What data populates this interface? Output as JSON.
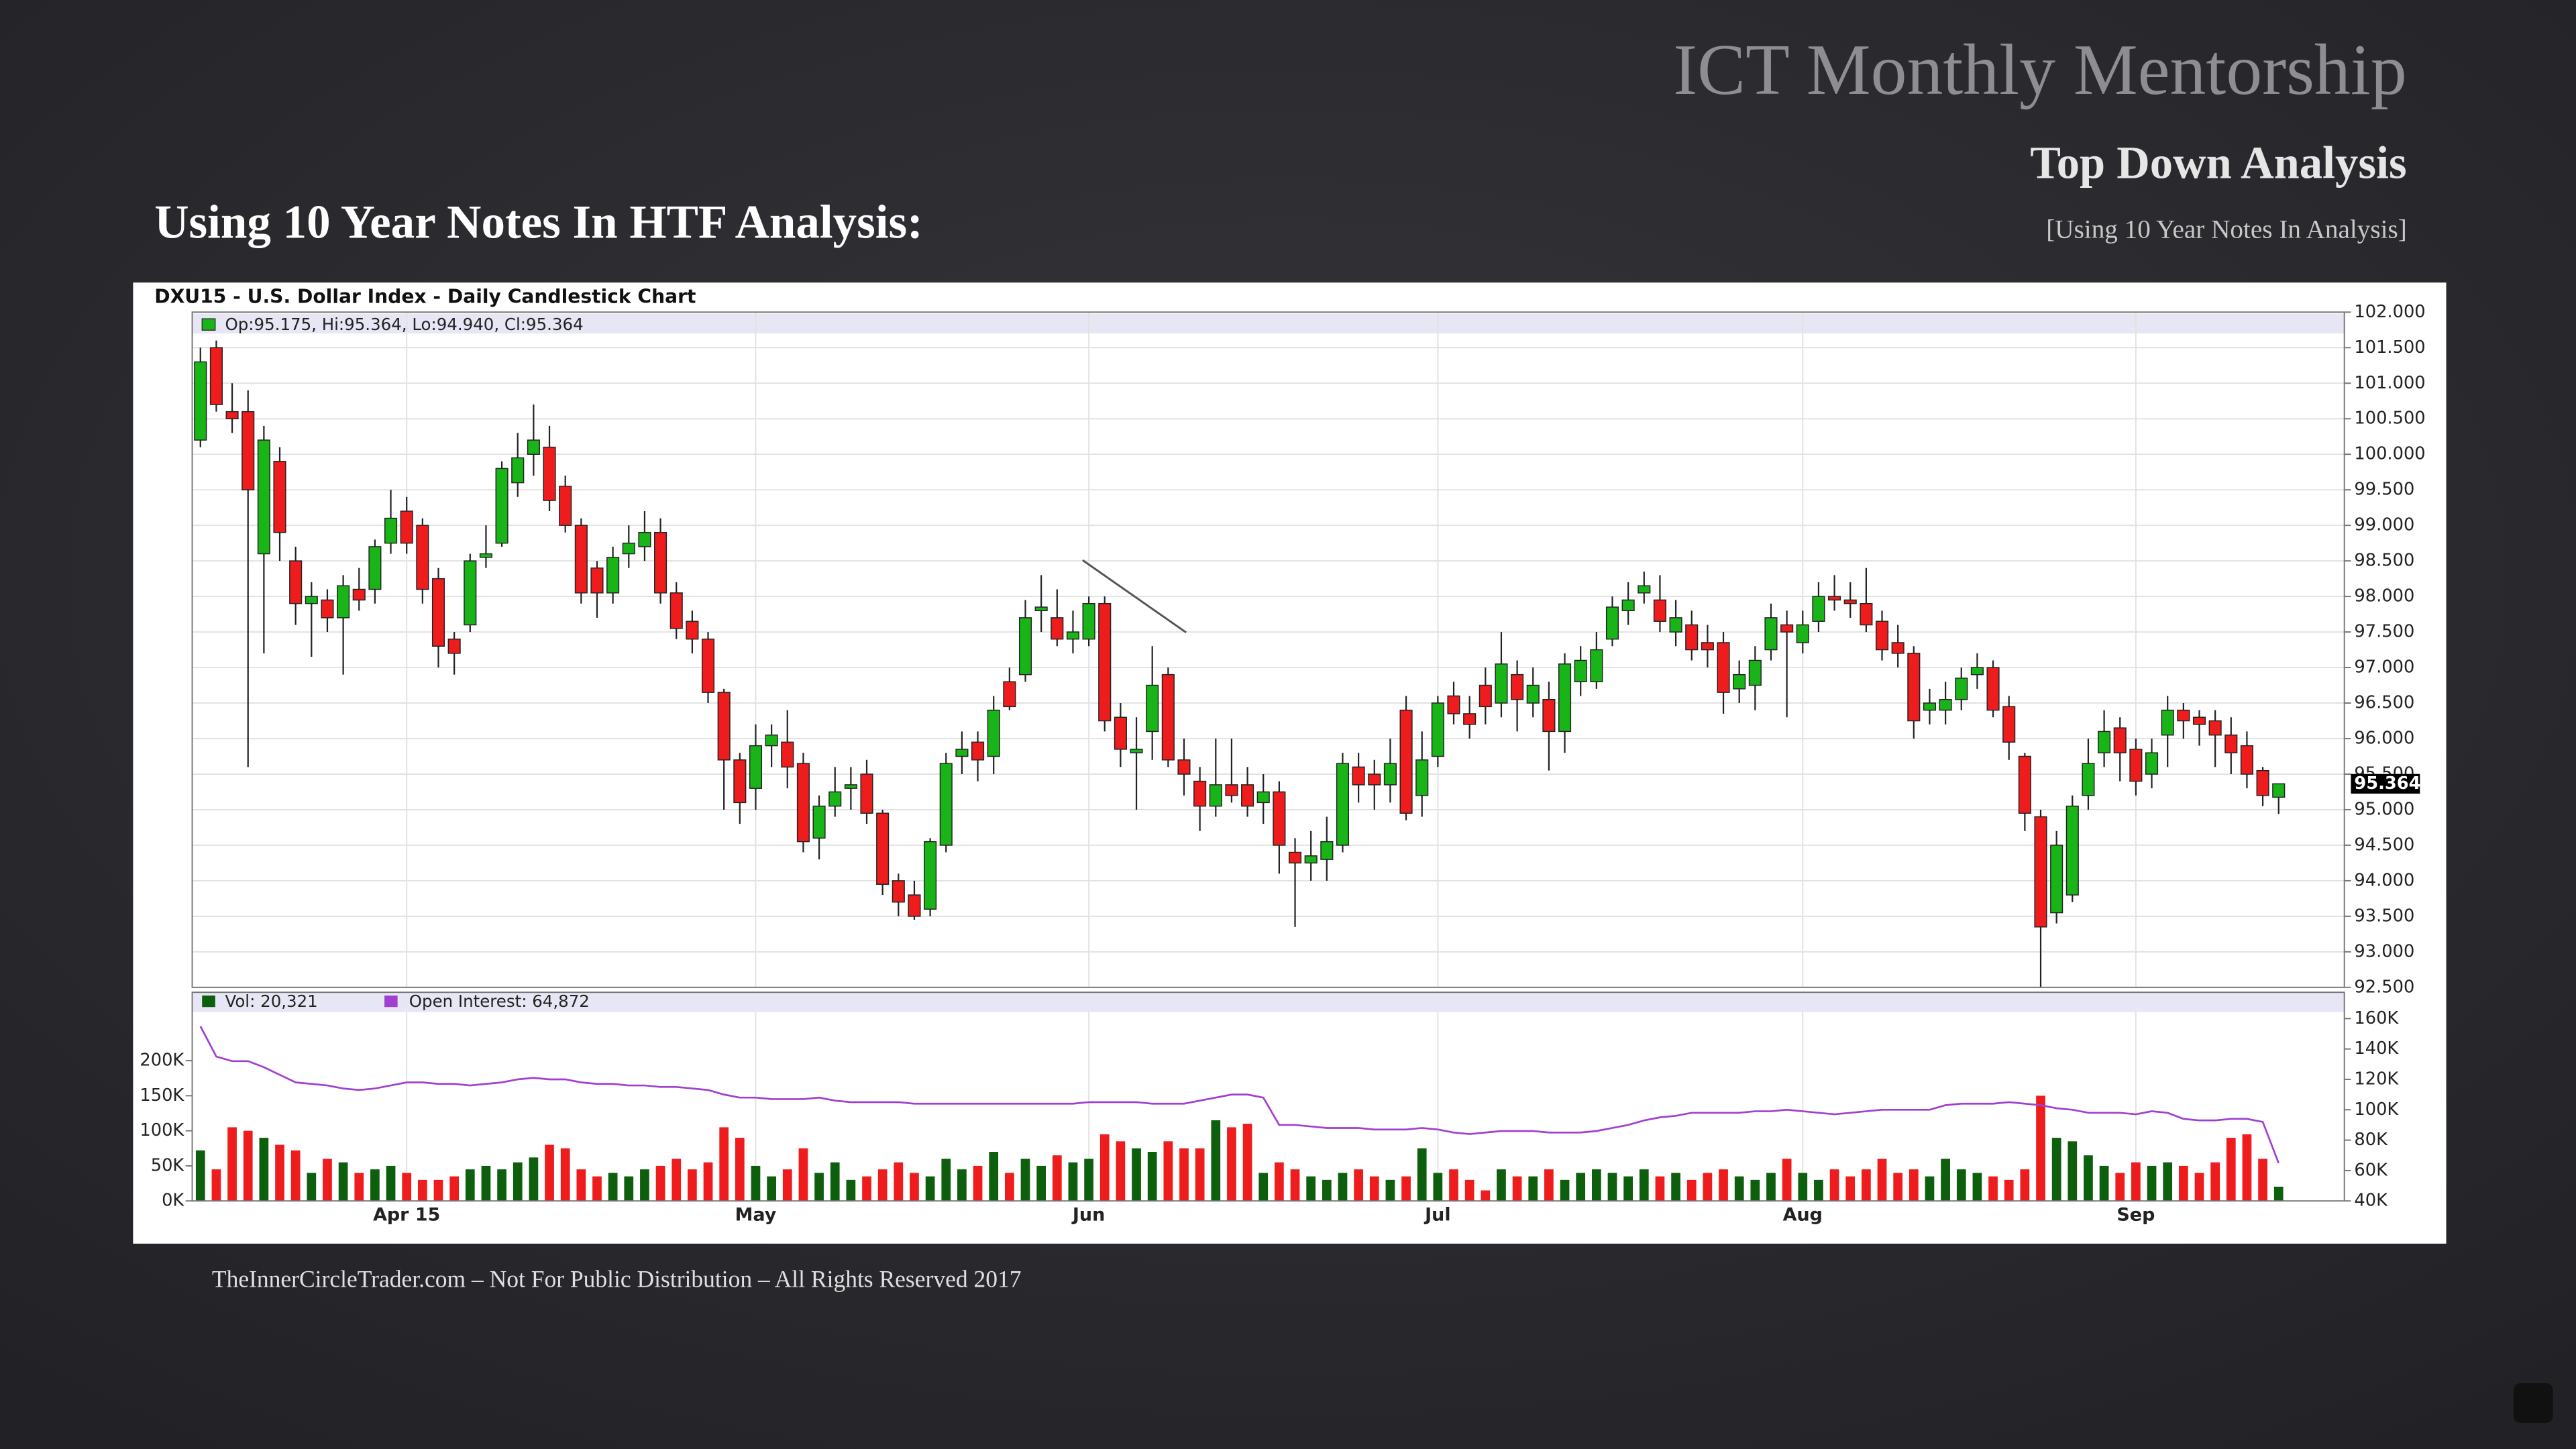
{
  "slide": {
    "title": "ICT Monthly Mentorship",
    "subtitle": "Top Down Analysis",
    "bracket_note": "[Using 10 Year Notes In Analysis]",
    "heading": "Using 10 Year Notes In HTF Analysis:",
    "footer": "TheInnerCircleTrader.com – Not For Public Distribution – All Rights Reserved 2017"
  },
  "chart_data": [
    {
      "type": "candlestick",
      "title": "DXU15 - U.S. Dollar Index - Daily Candlestick Chart",
      "legend": "Op:95.175, Hi:95.364, Lo:94.940, Cl:95.364",
      "up_color": "#18b418",
      "down_color": "#ee1c1c",
      "grid": true,
      "open": [
        100.2,
        101.5,
        100.6,
        100.6,
        98.6,
        99.9,
        98.5,
        97.9,
        97.95,
        97.7,
        98.1,
        98.1,
        98.75,
        99.2,
        99.0,
        98.25,
        97.4,
        97.6,
        98.55,
        98.75,
        99.6,
        100.0,
        100.1,
        99.55,
        99.0,
        98.4,
        98.05,
        98.6,
        98.7,
        98.9,
        98.05,
        97.65,
        97.4,
        96.65,
        95.7,
        95.3,
        95.9,
        95.95,
        95.65,
        94.6,
        95.05,
        95.3,
        95.5,
        94.95,
        94.0,
        93.8,
        93.6,
        94.5,
        95.75,
        95.95,
        95.75,
        96.8,
        96.9,
        97.8,
        97.7,
        97.4,
        97.4,
        97.9,
        96.3,
        95.8,
        96.1,
        96.9,
        95.7,
        95.4,
        95.05,
        95.35,
        95.35,
        95.1,
        95.25,
        94.4,
        94.25,
        94.3,
        94.5,
        95.6,
        95.5,
        95.35,
        96.4,
        95.2,
        95.75,
        96.6,
        96.35,
        96.75,
        96.5,
        96.9,
        96.5,
        96.55,
        96.1,
        96.8,
        96.8,
        97.4,
        97.8,
        98.05,
        97.95,
        97.5,
        97.6,
        97.35,
        97.35,
        96.7,
        96.75,
        97.25,
        97.6,
        97.35,
        97.65,
        98.0,
        97.95,
        97.9,
        97.65,
        97.35,
        97.2,
        96.4,
        96.4,
        96.55,
        96.9,
        97.0,
        96.45,
        95.75,
        94.9,
        93.55,
        93.8,
        95.2,
        95.8,
        96.15,
        95.85,
        95.5,
        96.05,
        96.4,
        96.3,
        96.25,
        96.05,
        95.9,
        95.55,
        95.175
      ],
      "high": [
        101.5,
        101.6,
        101.0,
        100.9,
        100.4,
        100.1,
        98.7,
        98.2,
        98.1,
        98.3,
        98.4,
        98.8,
        99.5,
        99.4,
        99.1,
        98.4,
        97.5,
        98.6,
        99.0,
        99.9,
        100.3,
        100.7,
        100.4,
        99.7,
        99.1,
        98.5,
        98.7,
        99.0,
        99.2,
        99.1,
        98.2,
        97.8,
        97.5,
        96.7,
        95.8,
        96.2,
        96.2,
        96.4,
        95.8,
        95.2,
        95.6,
        95.6,
        95.7,
        95.0,
        94.1,
        94.0,
        94.6,
        95.8,
        96.1,
        96.1,
        96.6,
        97.0,
        97.95,
        98.3,
        98.1,
        97.8,
        98.0,
        98.0,
        96.5,
        96.3,
        97.3,
        97.0,
        96.0,
        95.6,
        96.0,
        96.0,
        95.6,
        95.5,
        95.4,
        94.6,
        94.7,
        94.9,
        95.8,
        95.8,
        95.7,
        96.0,
        96.6,
        96.1,
        96.6,
        96.8,
        96.6,
        97.0,
        97.5,
        97.1,
        97.0,
        96.8,
        97.2,
        97.3,
        97.5,
        98.0,
        98.2,
        98.35,
        98.3,
        97.95,
        97.8,
        97.6,
        97.5,
        97.1,
        97.3,
        97.9,
        97.8,
        97.8,
        98.2,
        98.3,
        98.2,
        98.4,
        97.8,
        97.6,
        97.3,
        96.7,
        96.8,
        97.0,
        97.2,
        97.1,
        96.6,
        95.8,
        95.0,
        94.7,
        95.2,
        96.0,
        96.4,
        96.3,
        96.0,
        96.0,
        96.6,
        96.5,
        96.4,
        96.4,
        96.3,
        96.1,
        95.6,
        95.364
      ],
      "low": [
        100.1,
        100.6,
        100.3,
        95.6,
        97.2,
        98.5,
        97.6,
        97.15,
        97.5,
        96.9,
        97.8,
        97.9,
        98.6,
        98.6,
        97.9,
        97.0,
        96.9,
        97.5,
        98.4,
        98.7,
        99.4,
        99.7,
        99.2,
        98.9,
        97.9,
        97.7,
        97.9,
        98.4,
        98.5,
        97.9,
        97.4,
        97.2,
        96.5,
        95.0,
        94.8,
        95.0,
        95.6,
        95.3,
        94.4,
        94.3,
        94.9,
        95.0,
        94.8,
        93.8,
        93.5,
        93.45,
        93.5,
        94.4,
        95.5,
        95.4,
        95.5,
        96.4,
        96.8,
        97.5,
        97.3,
        97.2,
        97.3,
        96.1,
        95.6,
        95.0,
        95.7,
        95.6,
        95.2,
        94.7,
        94.9,
        95.1,
        94.9,
        94.8,
        94.1,
        93.35,
        94.0,
        94.0,
        94.4,
        95.1,
        95.0,
        95.1,
        94.85,
        94.9,
        95.6,
        96.2,
        96.0,
        96.2,
        96.3,
        96.1,
        96.3,
        95.55,
        95.8,
        96.6,
        96.7,
        97.3,
        97.6,
        97.9,
        97.5,
        97.3,
        97.1,
        97.0,
        96.35,
        96.5,
        96.4,
        97.1,
        96.3,
        97.2,
        97.5,
        97.8,
        97.7,
        97.5,
        97.1,
        97.0,
        96.0,
        96.2,
        96.2,
        96.4,
        96.7,
        96.3,
        95.7,
        94.7,
        92.5,
        93.4,
        93.7,
        95.0,
        95.6,
        95.4,
        95.2,
        95.3,
        95.6,
        96.0,
        95.9,
        95.6,
        95.5,
        95.3,
        95.05,
        94.94
      ],
      "close": [
        101.3,
        100.7,
        100.5,
        99.5,
        100.2,
        98.9,
        97.9,
        98.0,
        97.7,
        98.15,
        97.95,
        98.7,
        99.1,
        98.75,
        98.1,
        97.3,
        97.2,
        98.5,
        98.6,
        99.8,
        99.95,
        100.2,
        99.35,
        99.0,
        98.05,
        98.05,
        98.55,
        98.75,
        98.9,
        98.05,
        97.55,
        97.4,
        96.65,
        95.7,
        95.1,
        95.9,
        96.05,
        95.6,
        94.55,
        95.05,
        95.25,
        95.35,
        94.95,
        93.95,
        93.7,
        93.5,
        94.55,
        95.65,
        95.85,
        95.7,
        96.4,
        96.45,
        97.7,
        97.85,
        97.4,
        97.5,
        97.9,
        96.25,
        95.85,
        95.85,
        96.75,
        95.7,
        95.5,
        95.05,
        95.35,
        95.2,
        95.05,
        95.25,
        94.5,
        94.25,
        94.35,
        94.55,
        95.65,
        95.35,
        95.35,
        95.65,
        94.95,
        95.7,
        96.5,
        96.35,
        96.2,
        96.45,
        97.05,
        96.55,
        96.75,
        96.1,
        97.05,
        97.1,
        97.25,
        97.85,
        97.95,
        98.15,
        97.65,
        97.7,
        97.25,
        97.25,
        96.65,
        96.9,
        97.1,
        97.7,
        97.5,
        97.6,
        98.0,
        97.95,
        97.9,
        97.6,
        97.25,
        97.2,
        96.25,
        96.5,
        96.55,
        96.85,
        97.0,
        96.4,
        95.95,
        94.95,
        93.35,
        94.5,
        95.05,
        95.65,
        96.1,
        95.8,
        95.4,
        95.8,
        96.4,
        96.25,
        96.2,
        96.05,
        95.8,
        95.5,
        95.2,
        95.364
      ],
      "ylim": [
        92.5,
        102.0
      ],
      "yticks": [
        {
          "value": 92.5,
          "label": "92.500"
        },
        {
          "value": 93,
          "label": "93.000"
        },
        {
          "value": 93.5,
          "label": "93.500"
        },
        {
          "value": 94,
          "label": "94.000"
        },
        {
          "value": 94.5,
          "label": "94.500"
        },
        {
          "value": 95,
          "label": "95.000"
        },
        {
          "value": 95.5,
          "label": "95.500"
        },
        {
          "value": 96,
          "label": "96.000"
        },
        {
          "value": 96.5,
          "label": "96.500"
        },
        {
          "value": 97,
          "label": "97.000"
        },
        {
          "value": 97.5,
          "label": "97.500"
        },
        {
          "value": 98,
          "label": "98.000"
        },
        {
          "value": 98.5,
          "label": "98.500"
        },
        {
          "value": 99,
          "label": "99.000"
        },
        {
          "value": 99.5,
          "label": "99.500"
        },
        {
          "value": 100,
          "label": "100.000"
        },
        {
          "value": 100.5,
          "label": "100.500"
        },
        {
          "value": 101,
          "label": "101.000"
        },
        {
          "value": 101.5,
          "label": "101.500"
        },
        {
          "value": 102,
          "label": "102.000"
        }
      ]
    },
    {
      "type": "bar",
      "categories": [
        null,
        null,
        null,
        null,
        null,
        null,
        null,
        null,
        null,
        null,
        null,
        null,
        null,
        "Apr 15",
        null,
        null,
        null,
        null,
        null,
        null,
        null,
        null,
        null,
        null,
        null,
        null,
        null,
        null,
        null,
        null,
        null,
        null,
        null,
        null,
        null,
        "May",
        null,
        null,
        null,
        null,
        null,
        null,
        null,
        null,
        null,
        null,
        null,
        null,
        null,
        null,
        null,
        null,
        null,
        null,
        null,
        null,
        "Jun",
        null,
        null,
        null,
        null,
        null,
        null,
        null,
        null,
        null,
        null,
        null,
        null,
        null,
        null,
        null,
        null,
        null,
        null,
        null,
        null,
        null,
        "Jul",
        null,
        null,
        null,
        null,
        null,
        null,
        null,
        null,
        null,
        null,
        null,
        null,
        null,
        null,
        null,
        null,
        null,
        null,
        null,
        null,
        null,
        null,
        "Aug",
        null,
        null,
        null,
        null,
        null,
        null,
        null,
        null,
        null,
        null,
        null,
        null,
        null,
        null,
        null,
        null,
        null,
        null,
        null,
        null,
        "Sep",
        null,
        null,
        null,
        null,
        null,
        null,
        null,
        null,
        null
      ],
      "series": [
        {
          "name": "Vol: 20,321",
          "color": "#0d5e0d",
          "values": [
            72000,
            45000,
            105000,
            100000,
            90000,
            80000,
            72000,
            40000,
            60000,
            55000,
            40000,
            45000,
            50000,
            40000,
            30000,
            30000,
            35000,
            45000,
            50000,
            45000,
            55000,
            62000,
            80000,
            75000,
            45000,
            35000,
            40000,
            35000,
            45000,
            50000,
            60000,
            45000,
            55000,
            105000,
            90000,
            50000,
            35000,
            45000,
            75000,
            40000,
            55000,
            30000,
            35000,
            45000,
            55000,
            40000,
            35000,
            60000,
            45000,
            50000,
            70000,
            40000,
            60000,
            50000,
            65000,
            55000,
            60000,
            95000,
            85000,
            75000,
            70000,
            85000,
            75000,
            75000,
            115000,
            105000,
            110000,
            40000,
            55000,
            45000,
            35000,
            30000,
            40000,
            45000,
            35000,
            30000,
            35000,
            75000,
            40000,
            45000,
            30000,
            15000,
            45000,
            35000,
            35000,
            45000,
            30000,
            40000,
            45000,
            40000,
            35000,
            45000,
            35000,
            40000,
            30000,
            40000,
            45000,
            35000,
            30000,
            40000,
            60000,
            40000,
            30000,
            45000,
            35000,
            45000,
            60000,
            40000,
            45000,
            35000,
            60000,
            45000,
            40000,
            35000,
            30000,
            45000,
            150000,
            90000,
            85000,
            65000,
            50000,
            40000,
            55000,
            50000,
            55000,
            50000,
            40000,
            55000,
            90000,
            95000,
            60000,
            20321
          ]
        },
        {
          "name": "Open Interest: 64,872",
          "color": "#a040d0",
          "axis": "y2",
          "values": [
            155000,
            135000,
            132000,
            132000,
            128000,
            123000,
            118000,
            117000,
            116000,
            114000,
            113000,
            114000,
            116000,
            118000,
            118000,
            117000,
            117000,
            116000,
            117000,
            118000,
            120000,
            121000,
            120000,
            120000,
            118000,
            117000,
            117000,
            116000,
            116000,
            115000,
            115000,
            114000,
            113000,
            110000,
            108000,
            108000,
            107000,
            107000,
            107000,
            108000,
            106000,
            105000,
            105000,
            105000,
            105000,
            104000,
            104000,
            104000,
            104000,
            104000,
            104000,
            104000,
            104000,
            104000,
            104000,
            104000,
            105000,
            105000,
            105000,
            105000,
            104000,
            104000,
            104000,
            106000,
            108000,
            110000,
            110000,
            108000,
            90000,
            90000,
            89000,
            88000,
            88000,
            88000,
            87000,
            87000,
            87000,
            88000,
            87000,
            85000,
            84000,
            85000,
            86000,
            86000,
            86000,
            85000,
            85000,
            85000,
            86000,
            88000,
            90000,
            93000,
            95000,
            96000,
            98000,
            98000,
            98000,
            98000,
            99000,
            99000,
            100000,
            99000,
            98000,
            97000,
            98000,
            99000,
            100000,
            100000,
            100000,
            100000,
            103000,
            104000,
            104000,
            104000,
            105000,
            104000,
            103000,
            101000,
            100000,
            98000,
            98000,
            98000,
            97000,
            99000,
            98000,
            94000,
            93000,
            93000,
            94000,
            94000,
            92000,
            64872
          ]
        }
      ],
      "ylim": [
        0,
        260000
      ],
      "yticks": [
        {
          "value": 0,
          "label": "0K"
        },
        {
          "value": 50000,
          "label": "50K"
        },
        {
          "value": 100000,
          "label": "100K"
        },
        {
          "value": 150000,
          "label": "150K"
        },
        {
          "value": 200000,
          "label": "200K"
        }
      ],
      "y2lim": [
        40000,
        160000
      ],
      "y2ticks": [
        {
          "value": 40000,
          "label": "40K"
        },
        {
          "value": 60000,
          "label": "60K"
        },
        {
          "value": 80000,
          "label": "80K"
        },
        {
          "value": 100000,
          "label": "100K"
        },
        {
          "value": 120000,
          "label": "120K"
        },
        {
          "value": 140000,
          "label": "140K"
        },
        {
          "value": 160000,
          "label": "160K"
        }
      ]
    }
  ]
}
